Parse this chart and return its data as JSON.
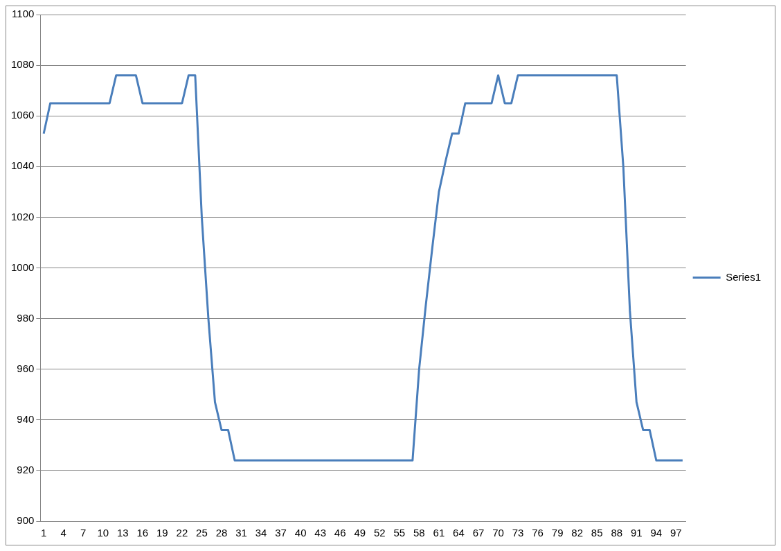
{
  "chart_data": {
    "type": "line",
    "categories": [
      "1",
      null,
      null,
      "4",
      null,
      null,
      "7",
      null,
      null,
      "10",
      null,
      null,
      "13",
      null,
      null,
      "16",
      null,
      null,
      "19",
      null,
      null,
      "22",
      null,
      null,
      "25",
      null,
      null,
      "28",
      null,
      null,
      "31",
      null,
      null,
      "34",
      null,
      null,
      "37",
      null,
      null,
      "40",
      null,
      null,
      "43",
      null,
      null,
      "46",
      null,
      null,
      "49",
      null,
      null,
      "52",
      null,
      null,
      "55",
      null,
      null,
      "58",
      null,
      null,
      "61",
      null,
      null,
      "64",
      null,
      null,
      "67",
      null,
      null,
      "70",
      null,
      null,
      "73",
      null,
      null,
      "76",
      null,
      null,
      "79",
      null,
      null,
      "82",
      null,
      null,
      "85",
      null,
      null,
      "88",
      null,
      null,
      "91",
      null,
      null,
      "94",
      null,
      null,
      "97",
      null
    ],
    "series": [
      {
        "name": "Series1",
        "color": "#4a7ebb",
        "values": [
          1053,
          1065,
          1065,
          1065,
          1065,
          1065,
          1065,
          1065,
          1065,
          1065,
          1065,
          1076,
          1076,
          1076,
          1076,
          1065,
          1065,
          1065,
          1065,
          1065,
          1065,
          1065,
          1076,
          1076,
          1020,
          980,
          947,
          936,
          936,
          924,
          924,
          924,
          924,
          924,
          924,
          924,
          924,
          924,
          924,
          924,
          924,
          924,
          924,
          924,
          924,
          924,
          924,
          924,
          924,
          924,
          924,
          924,
          924,
          924,
          924,
          924,
          924,
          960,
          985,
          1008,
          1030,
          1042,
          1053,
          1053,
          1065,
          1065,
          1065,
          1065,
          1065,
          1076,
          1065,
          1065,
          1076,
          1076,
          1076,
          1076,
          1076,
          1076,
          1076,
          1076,
          1076,
          1076,
          1076,
          1076,
          1076,
          1076,
          1076,
          1076,
          1040,
          983,
          947,
          936,
          936,
          924,
          924,
          924,
          924,
          924
        ]
      }
    ],
    "ylim": [
      900,
      1100
    ],
    "yticks": [
      900,
      920,
      940,
      960,
      980,
      1000,
      1020,
      1040,
      1060,
      1080,
      1100
    ],
    "grid": "y",
    "legend": "right",
    "marker": "none",
    "line_style": "solid"
  }
}
